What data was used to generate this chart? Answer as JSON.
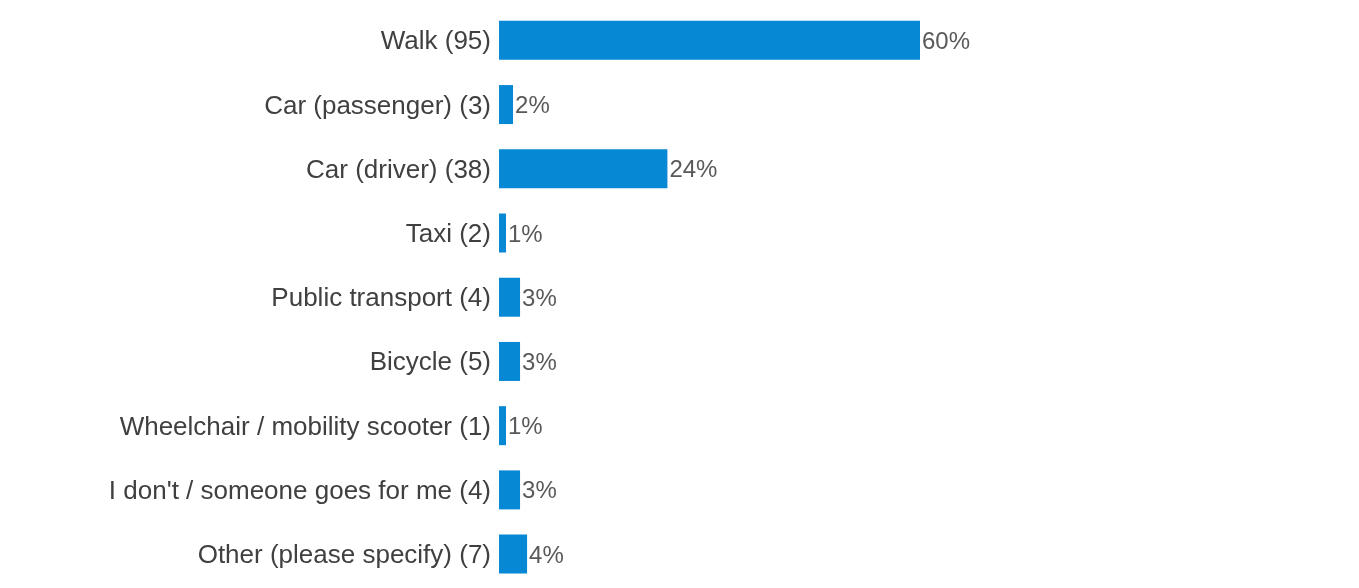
{
  "chart_data": {
    "type": "bar",
    "orientation": "horizontal",
    "categories": [
      "Walk (95)",
      "Car (passenger) (3)",
      "Car (driver) (38)",
      "Taxi (2)",
      "Public transport (4)",
      "Bicycle (5)",
      "Wheelchair / mobility scooter (1)",
      "I don't / someone goes for me (4)",
      "Other (please specify) (7)"
    ],
    "values": [
      60,
      2,
      24,
      1,
      3,
      3,
      1,
      3,
      4
    ],
    "value_labels": [
      "60%",
      "2%",
      "24%",
      "1%",
      "3%",
      "3%",
      "1%",
      "3%",
      "4%"
    ],
    "color": "#0788d4",
    "grid": false,
    "legend": false
  }
}
